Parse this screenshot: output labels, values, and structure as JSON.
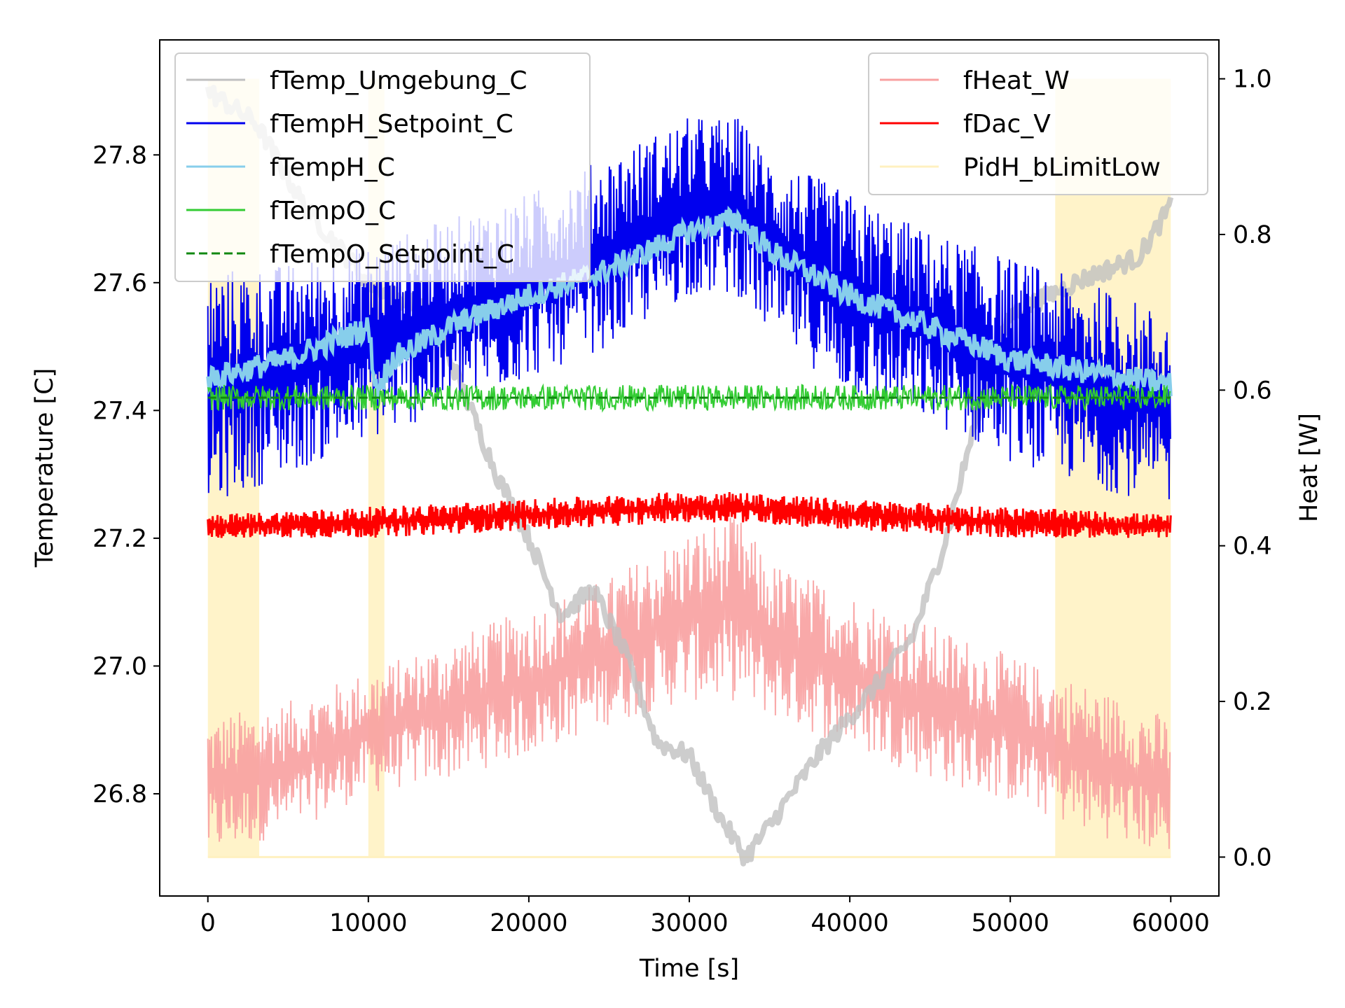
{
  "chart_data": {
    "type": "line",
    "xlabel": "Time [s]",
    "ylabel_left": "Temperature [C]",
    "ylabel_right": "Heat [W]",
    "xlim": [
      -3000,
      63000
    ],
    "ylim_left": [
      26.64,
      27.98
    ],
    "ylim_right": [
      -0.05,
      1.05
    ],
    "x_ticks": [
      0,
      10000,
      20000,
      30000,
      40000,
      50000,
      60000
    ],
    "y_ticks_left": [
      26.8,
      27.0,
      27.2,
      27.4,
      27.6,
      27.8
    ],
    "y_ticks_right": [
      0.0,
      0.2,
      0.4,
      0.6,
      0.8,
      1.0
    ],
    "grid": false,
    "legend_left": "top-left",
    "legend_right": "top-right",
    "series_left": [
      {
        "name": "fTemp_Umgebung_C",
        "color": "#c0c0c0",
        "style": "solid",
        "opacity": 0.8,
        "x": [
          0,
          3000,
          6000,
          10000,
          14000,
          18000,
          20000,
          22000,
          24000,
          26000,
          28000,
          30000,
          32000,
          33500,
          35000,
          38000,
          40000,
          42000,
          44000,
          46000,
          48000,
          50000,
          54000,
          58000,
          60000
        ],
        "y": [
          27.9,
          27.85,
          27.72,
          27.6,
          27.55,
          27.3,
          27.2,
          27.08,
          27.12,
          27.02,
          26.88,
          26.86,
          26.76,
          26.7,
          26.75,
          26.86,
          26.92,
          26.98,
          27.05,
          27.2,
          27.4,
          27.55,
          27.6,
          27.64,
          27.72
        ]
      },
      {
        "name": "fTempH_Setpoint_C",
        "color": "#0000ee",
        "style": "solid",
        "band": true,
        "x": [
          0,
          5000,
          10000,
          15000,
          20000,
          25000,
          30000,
          33000,
          35000,
          40000,
          45000,
          50000,
          55000,
          60000
        ],
        "y_low": [
          27.25,
          27.3,
          27.35,
          27.4,
          27.45,
          27.5,
          27.58,
          27.58,
          27.52,
          27.42,
          27.38,
          27.32,
          27.28,
          27.25
        ],
        "y_high": [
          27.62,
          27.63,
          27.66,
          27.7,
          27.74,
          27.8,
          27.86,
          27.86,
          27.8,
          27.74,
          27.68,
          27.64,
          27.6,
          27.55
        ]
      },
      {
        "name": "fTempH_C",
        "color": "#87ceeb",
        "style": "solid",
        "x": [
          0,
          5000,
          10000,
          10500,
          11500,
          15000,
          20000,
          25000,
          30000,
          33000,
          35000,
          40000,
          45000,
          50000,
          55000,
          60000
        ],
        "y": [
          27.45,
          27.48,
          27.53,
          27.43,
          27.48,
          27.53,
          27.58,
          27.62,
          27.68,
          27.7,
          27.65,
          27.58,
          27.53,
          27.48,
          27.46,
          27.44
        ]
      },
      {
        "name": "fTempO_C",
        "color": "#33cc33",
        "style": "solid",
        "x": [
          0,
          60000
        ],
        "y": [
          27.42,
          27.42
        ],
        "noise": 0.02
      },
      {
        "name": "fTempO_Setpoint_C",
        "color": "#118811",
        "style": "dashed",
        "x": [
          0,
          60000
        ],
        "y": [
          27.42,
          27.42
        ]
      }
    ],
    "series_right": [
      {
        "name": "fHeat_W",
        "color": "#f8a0a0",
        "style": "solid",
        "band": true,
        "x": [
          0,
          5000,
          10000,
          15000,
          20000,
          25000,
          30000,
          33000,
          35000,
          40000,
          45000,
          50000,
          55000,
          60000
        ],
        "y_low": [
          0.0,
          0.03,
          0.08,
          0.1,
          0.13,
          0.17,
          0.2,
          0.2,
          0.18,
          0.14,
          0.1,
          0.07,
          0.03,
          0.0
        ],
        "y_high": [
          0.18,
          0.2,
          0.24,
          0.28,
          0.32,
          0.36,
          0.42,
          0.44,
          0.38,
          0.34,
          0.3,
          0.26,
          0.22,
          0.18
        ]
      },
      {
        "name": "fDac_V",
        "color": "#ff0000",
        "style": "solid",
        "band": true,
        "x": [
          0,
          10000,
          20000,
          30000,
          33000,
          40000,
          50000,
          60000
        ],
        "y_low": [
          0.41,
          0.41,
          0.42,
          0.43,
          0.43,
          0.42,
          0.41,
          0.41
        ],
        "y_high": [
          0.44,
          0.45,
          0.46,
          0.47,
          0.47,
          0.46,
          0.45,
          0.44
        ]
      },
      {
        "name": "PidH_bLimitLow",
        "color": "#fff1c0",
        "style": "solid",
        "intervals": [
          [
            0,
            3200
          ],
          [
            10000,
            11000
          ],
          [
            52800,
            60000
          ]
        ],
        "y_low": 0.0,
        "y_high": 1.0
      }
    ]
  }
}
